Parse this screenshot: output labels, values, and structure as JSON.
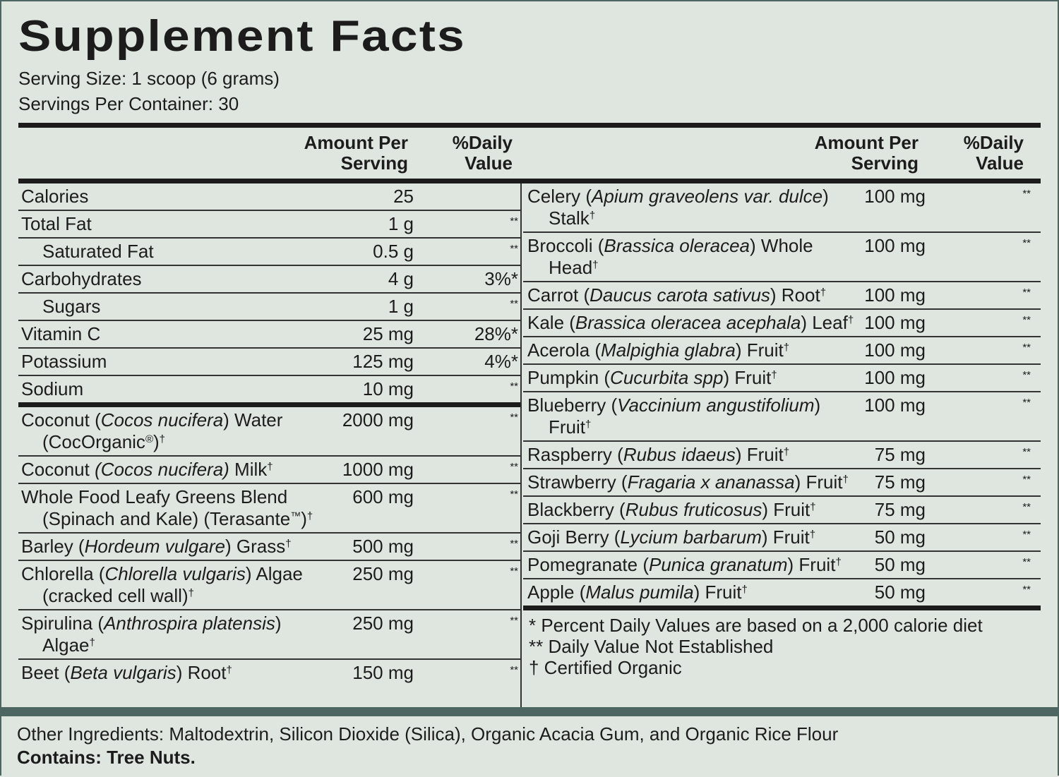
{
  "title": "Supplement Facts",
  "serving_size": "Serving Size: 1 scoop (6 grams)",
  "servings_per_container": "Servings Per Container: 30",
  "headers": {
    "amount": "Amount Per Serving",
    "dv": "%Daily Value"
  },
  "left": {
    "nutrients": [
      {
        "name": [
          {
            "text": "Calories"
          }
        ],
        "amount": "25"
      },
      {
        "name": [
          {
            "text": "Total Fat"
          }
        ],
        "amount": "1 g",
        "dv": [
          {
            "text": "**",
            "style": "sup"
          }
        ]
      },
      {
        "name": [
          {
            "text": "Saturated Fat"
          }
        ],
        "amount": "0.5 g",
        "dv": [
          {
            "text": "**",
            "style": "sup"
          }
        ],
        "indent": true
      },
      {
        "name": [
          {
            "text": "Carbohydrates"
          }
        ],
        "amount": "4 g",
        "dv": [
          {
            "text": "3%*"
          }
        ]
      },
      {
        "name": [
          {
            "text": "Sugars"
          }
        ],
        "amount": "1 g",
        "dv": [
          {
            "text": "**",
            "style": "sup"
          }
        ],
        "indent": true
      },
      {
        "name": [
          {
            "text": "Vitamin C"
          }
        ],
        "amount": "25 mg",
        "dv": [
          {
            "text": "28%*"
          }
        ]
      },
      {
        "name": [
          {
            "text": "Potassium"
          }
        ],
        "amount": "125 mg",
        "dv": [
          {
            "text": "4%*"
          }
        ]
      },
      {
        "name": [
          {
            "text": "Sodium"
          }
        ],
        "amount": "10 mg",
        "dv": [
          {
            "text": "**",
            "style": "sup"
          }
        ]
      }
    ],
    "ingredients": [
      {
        "name": [
          {
            "text": "Coconut ("
          },
          {
            "text": "Cocos nucifera",
            "style": "italic"
          },
          {
            "text": ") Water (CocOrganic"
          },
          {
            "text": "®",
            "style": "sup"
          },
          {
            "text": ")"
          },
          {
            "text": "†",
            "style": "sup"
          }
        ],
        "amount": "2000 mg",
        "dv": [
          {
            "text": "**",
            "style": "sup"
          }
        ]
      },
      {
        "name": [
          {
            "text": "Coconut "
          },
          {
            "text": "(Cocos nucifera)",
            "style": "italic"
          },
          {
            "text": " Milk"
          },
          {
            "text": "†",
            "style": "sup"
          }
        ],
        "amount": "1000 mg",
        "dv": [
          {
            "text": "**",
            "style": "sup"
          }
        ]
      },
      {
        "name": [
          {
            "text": "Whole Food Leafy Greens Blend (Spinach and Kale) (Terasante"
          },
          {
            "text": "™",
            "style": "sup"
          },
          {
            "text": ")"
          },
          {
            "text": "†",
            "style": "sup"
          }
        ],
        "amount": "600 mg",
        "dv": [
          {
            "text": "**",
            "style": "sup"
          }
        ]
      },
      {
        "name": [
          {
            "text": "Barley ("
          },
          {
            "text": "Hordeum vulgare",
            "style": "italic"
          },
          {
            "text": ") Grass"
          },
          {
            "text": "†",
            "style": "sup"
          }
        ],
        "amount": "500 mg",
        "dv": [
          {
            "text": "**",
            "style": "sup"
          }
        ]
      },
      {
        "name": [
          {
            "text": "Chlorella ("
          },
          {
            "text": "Chlorella vulgaris",
            "style": "italic"
          },
          {
            "text": ") Algae (cracked cell wall)"
          },
          {
            "text": "†",
            "style": "sup"
          }
        ],
        "amount": "250 mg",
        "dv": [
          {
            "text": "**",
            "style": "sup"
          }
        ]
      },
      {
        "name": [
          {
            "text": "Spirulina ("
          },
          {
            "text": "Anthrospira platensis",
            "style": "italic"
          },
          {
            "text": ") Algae"
          },
          {
            "text": "†",
            "style": "sup"
          }
        ],
        "amount": "250 mg",
        "dv": [
          {
            "text": "**",
            "style": "sup"
          }
        ]
      },
      {
        "name": [
          {
            "text": "Beet ("
          },
          {
            "text": "Beta vulgaris",
            "style": "italic"
          },
          {
            "text": ") Root"
          },
          {
            "text": "†",
            "style": "sup"
          }
        ],
        "amount": "150 mg",
        "dv": [
          {
            "text": "**",
            "style": "sup"
          }
        ]
      }
    ]
  },
  "right": {
    "ingredients": [
      {
        "name": [
          {
            "text": "Celery ("
          },
          {
            "text": "Apium graveolens var. dulce",
            "style": "italic"
          },
          {
            "text": ") Stalk"
          },
          {
            "text": "†",
            "style": "sup"
          }
        ],
        "amount": "100 mg",
        "dv": [
          {
            "text": "**",
            "style": "sup"
          }
        ]
      },
      {
        "name": [
          {
            "text": "Broccoli ("
          },
          {
            "text": "Brassica oleracea",
            "style": "italic"
          },
          {
            "text": ") Whole Head"
          },
          {
            "text": "†",
            "style": "sup"
          }
        ],
        "amount": "100 mg",
        "dv": [
          {
            "text": "**",
            "style": "sup"
          }
        ]
      },
      {
        "name": [
          {
            "text": "Carrot ("
          },
          {
            "text": "Daucus carota sativus",
            "style": "italic"
          },
          {
            "text": ") Root"
          },
          {
            "text": "†",
            "style": "sup"
          }
        ],
        "amount": "100 mg",
        "dv": [
          {
            "text": "**",
            "style": "sup"
          }
        ]
      },
      {
        "name": [
          {
            "text": "Kale ("
          },
          {
            "text": "Brassica oleracea acephala",
            "style": "italic"
          },
          {
            "text": ") Leaf"
          },
          {
            "text": "†",
            "style": "sup"
          }
        ],
        "amount": "100 mg",
        "dv": [
          {
            "text": "**",
            "style": "sup"
          }
        ]
      },
      {
        "name": [
          {
            "text": "Acerola ("
          },
          {
            "text": "Malpighia glabra",
            "style": "italic"
          },
          {
            "text": ") Fruit"
          },
          {
            "text": "†",
            "style": "sup"
          }
        ],
        "amount": "100 mg",
        "dv": [
          {
            "text": "**",
            "style": "sup"
          }
        ]
      },
      {
        "name": [
          {
            "text": "Pumpkin ("
          },
          {
            "text": "Cucurbita spp",
            "style": "italic"
          },
          {
            "text": ") Fruit"
          },
          {
            "text": "†",
            "style": "sup"
          }
        ],
        "amount": "100 mg",
        "dv": [
          {
            "text": "**",
            "style": "sup"
          }
        ]
      },
      {
        "name": [
          {
            "text": "Blueberry ("
          },
          {
            "text": "Vaccinium angustifolium",
            "style": "italic"
          },
          {
            "text": ") Fruit"
          },
          {
            "text": "†",
            "style": "sup"
          }
        ],
        "amount": "100 mg",
        "dv": [
          {
            "text": "**",
            "style": "sup"
          }
        ]
      },
      {
        "name": [
          {
            "text": "Raspberry ("
          },
          {
            "text": "Rubus idaeus",
            "style": "italic"
          },
          {
            "text": ") Fruit"
          },
          {
            "text": "†",
            "style": "sup"
          }
        ],
        "amount": "75 mg",
        "dv": [
          {
            "text": "**",
            "style": "sup"
          }
        ]
      },
      {
        "name": [
          {
            "text": "Strawberry ("
          },
          {
            "text": "Fragaria x ananassa",
            "style": "italic"
          },
          {
            "text": ") Fruit"
          },
          {
            "text": "†",
            "style": "sup"
          }
        ],
        "amount": "75 mg",
        "dv": [
          {
            "text": "**",
            "style": "sup"
          }
        ]
      },
      {
        "name": [
          {
            "text": "Blackberry ("
          },
          {
            "text": "Rubus fruticosus",
            "style": "italic"
          },
          {
            "text": ") Fruit"
          },
          {
            "text": "†",
            "style": "sup"
          }
        ],
        "amount": "75 mg",
        "dv": [
          {
            "text": "**",
            "style": "sup"
          }
        ]
      },
      {
        "name": [
          {
            "text": "Goji Berry ("
          },
          {
            "text": "Lycium barbarum",
            "style": "italic"
          },
          {
            "text": ") Fruit"
          },
          {
            "text": "†",
            "style": "sup"
          }
        ],
        "amount": "50 mg",
        "dv": [
          {
            "text": "**",
            "style": "sup"
          }
        ]
      },
      {
        "name": [
          {
            "text": "Pomegranate ("
          },
          {
            "text": "Punica granatum",
            "style": "italic"
          },
          {
            "text": ") Fruit"
          },
          {
            "text": "†",
            "style": "sup"
          }
        ],
        "amount": "50 mg",
        "dv": [
          {
            "text": "**",
            "style": "sup"
          }
        ]
      },
      {
        "name": [
          {
            "text": "Apple ("
          },
          {
            "text": "Malus pumila",
            "style": "italic"
          },
          {
            "text": ") Fruit"
          },
          {
            "text": "†",
            "style": "sup"
          }
        ],
        "amount": "50 mg",
        "dv": [
          {
            "text": "**",
            "style": "sup"
          }
        ]
      }
    ],
    "footnotes": [
      "* Percent Daily Values are based on a 2,000 calorie diet",
      "** Daily Value Not Established",
      "† Certified Organic"
    ]
  },
  "other_ingredients": "Other Ingredients: Maltodextrin, Silicon Dioxide (Silica), Organic Acacia Gum, and Organic Rice Flour",
  "contains": "Contains: Tree Nuts."
}
